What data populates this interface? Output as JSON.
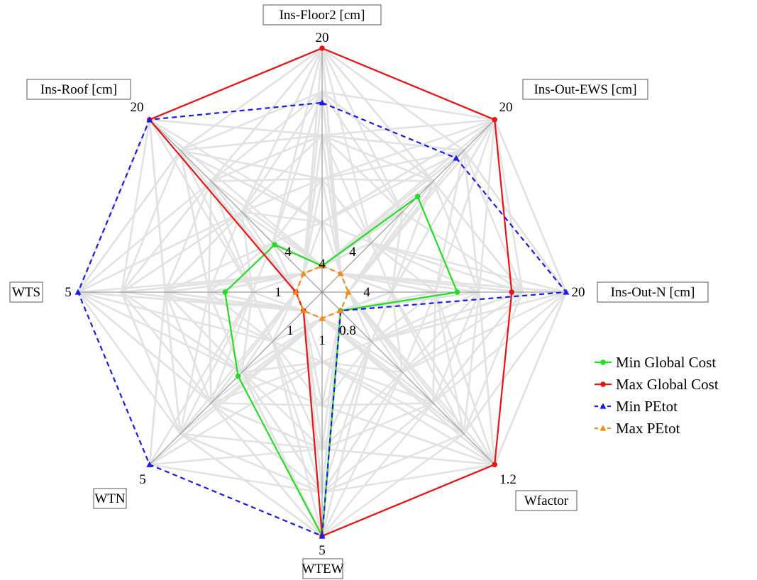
{
  "chart_data": {
    "type": "radar",
    "axes": [
      {
        "label": "Ins-Floor2 [cm]",
        "min": 4,
        "max": 20,
        "min_label": "4",
        "max_label": "20"
      },
      {
        "label": "Ins-Out-EWS [cm]",
        "min": 4,
        "max": 20,
        "min_label": "4",
        "max_label": "20"
      },
      {
        "label": "Ins-Out-N [cm]",
        "min": 4,
        "max": 20,
        "min_label": "4",
        "max_label": "20"
      },
      {
        "label": "Wfactor",
        "min": 0.8,
        "max": 1.2,
        "min_label": "0.8",
        "max_label": "1.2"
      },
      {
        "label": "WTEW",
        "min": 1,
        "max": 5,
        "min_label": "1",
        "max_label": "5"
      },
      {
        "label": "WTN",
        "min": 1,
        "max": 5,
        "min_label": "1",
        "max_label": "5"
      },
      {
        "label": "WTS",
        "min": 1,
        "max": 5,
        "min_label": "1",
        "max_label": "5"
      },
      {
        "label": "Ins-Roof [cm]",
        "min": 4,
        "max": 20,
        "min_label": "4",
        "max_label": "20"
      }
    ],
    "series": [
      {
        "name": "Min Global Cost",
        "color": "#22dd22",
        "dash": "solid",
        "marker": "circle",
        "values": [
          4,
          12,
          12,
          0.8,
          5,
          2.7,
          2.3,
          7
        ]
      },
      {
        "name": "Max Global Cost",
        "color": "#ee1111",
        "dash": "solid",
        "marker": "circle",
        "values": [
          20,
          20,
          16,
          1.2,
          5,
          1,
          1,
          20
        ]
      },
      {
        "name": "Min PEtot",
        "color": "#1a1aee",
        "dash": "dashed",
        "marker": "triangle",
        "values": [
          16,
          16,
          20,
          0.8,
          5,
          5,
          5,
          20
        ]
      },
      {
        "name": "Max PEtot",
        "color": "#f08c1a",
        "dash": "dashed",
        "marker": "triangle",
        "values": [
          4,
          4,
          4,
          0.8,
          1,
          1,
          1,
          4
        ]
      }
    ],
    "grid": true,
    "legend": "right",
    "background_lines": "many light-grey candidate solution polygons"
  }
}
